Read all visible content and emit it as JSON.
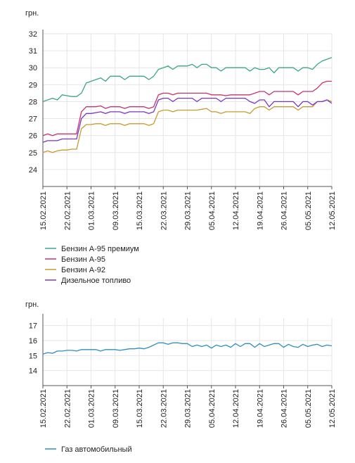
{
  "chart_data": [
    {
      "type": "line",
      "unit_label": "грн.",
      "x_labels": [
        "15.02.2021",
        "22.02.2021",
        "01.03.2021",
        "09.03.2021",
        "15.03.2021",
        "22.03.2021",
        "29.03.2021",
        "05.04.2021",
        "12.04.2021",
        "19.04.2021",
        "26.04.2021",
        "05.05.2021",
        "12.05.2021"
      ],
      "ylim": [
        23,
        32
      ],
      "yticks": [
        24,
        25,
        26,
        27,
        28,
        29,
        30,
        31,
        32
      ],
      "grid": true,
      "legend_position": "bottom-left",
      "series": [
        {
          "name": "Бензин А-95 премиум",
          "color": "#3aa58a",
          "values": [
            28.0,
            28.1,
            28.2,
            28.1,
            28.4,
            28.35,
            28.3,
            28.3,
            28.5,
            29.1,
            29.2,
            29.3,
            29.4,
            29.2,
            29.5,
            29.5,
            29.5,
            29.3,
            29.5,
            29.5,
            29.5,
            29.5,
            29.3,
            29.5,
            29.9,
            30.0,
            30.1,
            29.9,
            30.1,
            30.1,
            30.1,
            30.2,
            30.0,
            30.2,
            30.2,
            30.0,
            30.0,
            29.8,
            30.0,
            30.0,
            30.0,
            30.0,
            30.0,
            29.8,
            30.0,
            29.9,
            29.9,
            30.0,
            29.7,
            30.0,
            30.0,
            30.0,
            30.0,
            29.8,
            30.0,
            30.0,
            29.9,
            30.2,
            30.4,
            30.5,
            30.6
          ]
        },
        {
          "name": "Бензин А-95",
          "color": "#c8336e",
          "values": [
            26.0,
            26.1,
            26.0,
            26.1,
            26.1,
            26.1,
            26.1,
            26.1,
            27.4,
            27.7,
            27.7,
            27.7,
            27.75,
            27.6,
            27.7,
            27.7,
            27.7,
            27.6,
            27.7,
            27.7,
            27.7,
            27.7,
            27.6,
            27.7,
            28.4,
            28.5,
            28.5,
            28.4,
            28.5,
            28.5,
            28.5,
            28.5,
            28.5,
            28.5,
            28.5,
            28.4,
            28.4,
            28.4,
            28.35,
            28.4,
            28.4,
            28.4,
            28.4,
            28.4,
            28.5,
            28.6,
            28.6,
            28.4,
            28.6,
            28.6,
            28.6,
            28.6,
            28.6,
            28.4,
            28.6,
            28.6,
            28.6,
            28.8,
            29.1,
            29.2,
            29.2
          ]
        },
        {
          "name": "Бензин А-92",
          "color": "#c99a2e",
          "values": [
            25.0,
            25.1,
            25.0,
            25.1,
            25.15,
            25.15,
            25.2,
            25.2,
            26.4,
            26.65,
            26.65,
            26.7,
            26.7,
            26.6,
            26.7,
            26.7,
            26.7,
            26.6,
            26.7,
            26.7,
            26.7,
            26.7,
            26.6,
            26.7,
            27.4,
            27.5,
            27.5,
            27.4,
            27.5,
            27.5,
            27.5,
            27.5,
            27.5,
            27.55,
            27.6,
            27.4,
            27.4,
            27.3,
            27.4,
            27.4,
            27.4,
            27.4,
            27.4,
            27.3,
            27.6,
            27.7,
            27.7,
            27.5,
            27.7,
            27.7,
            27.7,
            27.7,
            27.7,
            27.5,
            27.7,
            27.7,
            27.7,
            28.0,
            28.0,
            28.1,
            28.0
          ]
        },
        {
          "name": "Дизельное топливо",
          "color": "#7a35c4",
          "values": [
            25.6,
            25.7,
            25.7,
            25.7,
            25.8,
            25.8,
            25.8,
            25.8,
            27.0,
            27.3,
            27.3,
            27.35,
            27.4,
            27.3,
            27.4,
            27.4,
            27.4,
            27.3,
            27.4,
            27.4,
            27.4,
            27.4,
            27.3,
            27.4,
            28.1,
            28.2,
            28.2,
            28.0,
            28.2,
            28.2,
            28.2,
            28.2,
            28.0,
            28.2,
            28.2,
            28.2,
            28.2,
            28.0,
            28.2,
            28.2,
            28.2,
            28.2,
            28.2,
            28.0,
            27.9,
            28.1,
            28.1,
            27.7,
            28.0,
            28.0,
            28.0,
            28.0,
            28.0,
            27.7,
            28.0,
            28.0,
            27.8,
            28.0,
            28.0,
            28.1,
            27.9
          ]
        }
      ]
    },
    {
      "type": "line",
      "unit_label": "грн.",
      "x_labels": [
        "15.02.2021",
        "22.02.2021",
        "01.03.2021",
        "09.03.2021",
        "15.03.2021",
        "22.03.2021",
        "29.03.2021",
        "05.04.2021",
        "12.04.2021",
        "19.04.2021",
        "26.04.2021",
        "05.05.2021",
        "12.05.2021"
      ],
      "ylim": [
        13,
        17.5
      ],
      "yticks": [
        14,
        15,
        16,
        17
      ],
      "grid": true,
      "legend_position": "bottom-left",
      "series": [
        {
          "name": "Газ автомобильный",
          "color": "#2f8fc0",
          "values": [
            15.1,
            15.2,
            15.15,
            15.3,
            15.3,
            15.35,
            15.35,
            15.3,
            15.4,
            15.4,
            15.4,
            15.4,
            15.3,
            15.4,
            15.4,
            15.4,
            15.35,
            15.4,
            15.45,
            15.45,
            15.5,
            15.45,
            15.55,
            15.7,
            15.85,
            15.85,
            15.75,
            15.85,
            15.85,
            15.8,
            15.8,
            15.6,
            15.7,
            15.6,
            15.7,
            15.5,
            15.7,
            15.6,
            15.7,
            15.55,
            15.8,
            15.6,
            15.8,
            15.8,
            15.55,
            15.8,
            15.6,
            15.7,
            15.8,
            15.8,
            15.55,
            15.75,
            15.6,
            15.55,
            15.75,
            15.6,
            15.7,
            15.75,
            15.6,
            15.7,
            15.65
          ]
        }
      ]
    }
  ]
}
